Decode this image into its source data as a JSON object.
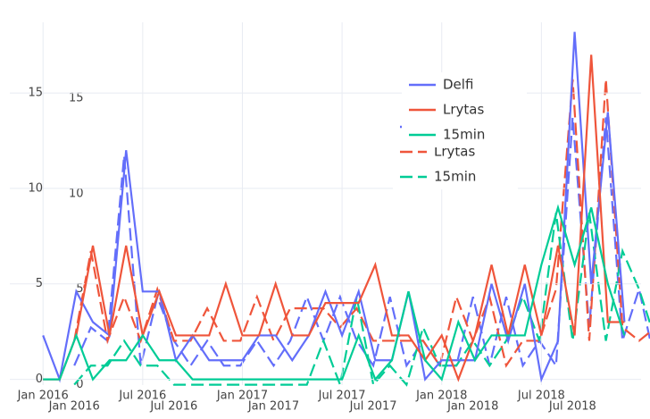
{
  "chart_data": [
    {
      "type": "line",
      "x": [
        "2016-01",
        "2016-02",
        "2016-03",
        "2016-04",
        "2016-05",
        "2016-06",
        "2016-07",
        "2016-08",
        "2016-09",
        "2016-10",
        "2016-11",
        "2016-12",
        "2017-01",
        "2017-02",
        "2017-03",
        "2017-04",
        "2017-05",
        "2017-06",
        "2017-07",
        "2017-08",
        "2017-09",
        "2017-10",
        "2017-11",
        "2017-12",
        "2018-01",
        "2018-02",
        "2018-03",
        "2018-04",
        "2018-05",
        "2018-06",
        "2018-07",
        "2018-08",
        "2018-09",
        "2018-10",
        "2018-11",
        "2018-12"
      ],
      "series": [
        {
          "name": "Delfi",
          "color": "#636efa",
          "values": [
            2.3,
            0,
            4.6,
            3,
            2.3,
            12,
            4.6,
            4.6,
            1,
            2.3,
            1,
            1,
            1,
            2.3,
            2.3,
            1,
            2.3,
            4.6,
            2.3,
            4.6,
            1,
            1,
            4.6,
            0,
            1,
            1,
            1,
            5,
            2,
            5,
            0,
            2,
            18.2,
            5,
            14,
            3
          ]
        },
        {
          "name": "Lrytas",
          "color": "#ef553b",
          "values": [
            0,
            0,
            2.3,
            7,
            2.3,
            7,
            2.3,
            4.6,
            2.3,
            2.3,
            2.3,
            5,
            2.3,
            2.3,
            5,
            2.3,
            2.3,
            4,
            4,
            4,
            6,
            2.3,
            2.3,
            1,
            2.3,
            0,
            2.3,
            6,
            2.3,
            6,
            2.3,
            7,
            2.3,
            17,
            3,
            3
          ]
        },
        {
          "name": "15min",
          "color": "#00cc96",
          "values": [
            0,
            0,
            2.3,
            0,
            1,
            1,
            2.3,
            1,
            1,
            0,
            0,
            0,
            0,
            0,
            0,
            0,
            0,
            0,
            0,
            2.3,
            0,
            1,
            4.6,
            1,
            0,
            3,
            1,
            2.3,
            2.3,
            2.3,
            6,
            9,
            6,
            9,
            5,
            2.3
          ]
        }
      ],
      "xlim": [
        "2015-11",
        "2019-01"
      ],
      "xticks": [
        {
          "value": "2016-01",
          "label": "Jan 2016"
        },
        {
          "value": "2016-07",
          "label": "Jul 2016"
        },
        {
          "value": "2017-01",
          "label": "Jan 2017"
        },
        {
          "value": "2017-07",
          "label": "Jul 2017"
        },
        {
          "value": "2018-01",
          "label": "Jan 2018"
        },
        {
          "value": "2018-07",
          "label": "Jul 2018"
        }
      ],
      "ylim": [
        -0.3,
        18.7
      ],
      "yticks": [
        0,
        5,
        10,
        15
      ],
      "grid": true,
      "dash": false
    },
    {
      "type": "line",
      "x": [
        "2016-01",
        "2016-02",
        "2016-03",
        "2016-04",
        "2016-05",
        "2016-06",
        "2016-07",
        "2016-08",
        "2016-09",
        "2016-10",
        "2016-11",
        "2016-12",
        "2017-01",
        "2017-02",
        "2017-03",
        "2017-04",
        "2017-05",
        "2017-06",
        "2017-07",
        "2017-08",
        "2017-09",
        "2017-10",
        "2017-11",
        "2017-12",
        "2018-01",
        "2018-02",
        "2018-03",
        "2018-04",
        "2018-05",
        "2018-06",
        "2018-07",
        "2018-08",
        "2018-09",
        "2018-10",
        "2018-11",
        "2018-12"
      ],
      "series": [
        {
          "name": "Delfi",
          "color": "#636efa",
          "values": [
            1,
            3,
            2.3,
            12,
            1,
            4.6,
            2.3,
            1,
            2.3,
            1,
            1,
            2.3,
            1,
            2.3,
            4.6,
            2.3,
            4.6,
            2.3,
            1,
            4.6,
            1,
            2.3,
            1,
            1,
            4.6,
            1,
            4.6,
            1,
            2.3,
            1,
            14,
            3,
            14,
            2.3,
            5,
            1
          ]
        },
        {
          "name": "Lrytas",
          "color": "#ef553b",
          "values": [
            2.3,
            7,
            2.3,
            4.6,
            2.3,
            5,
            2.3,
            2.3,
            4,
            2.3,
            2.3,
            4.6,
            2.3,
            4,
            4,
            4,
            3,
            4,
            2.3,
            2.3,
            2.3,
            2.3,
            1,
            4.6,
            2.3,
            4.6,
            1,
            2.3,
            2.3,
            5,
            16,
            2.3,
            16,
            3,
            2.3,
            3
          ]
        },
        {
          "name": "15min",
          "color": "#00cc96",
          "values": [
            0,
            1,
            1,
            2.3,
            1,
            1,
            0,
            0,
            0,
            0,
            0,
            0,
            0,
            0,
            0,
            2.3,
            0,
            4.6,
            0,
            1,
            0,
            3,
            1,
            1,
            2.3,
            1,
            2.3,
            4.6,
            2.3,
            9,
            2.3,
            9,
            2.3,
            7,
            5,
            2.3
          ]
        }
      ],
      "xlim": [
        "2015-11",
        "2019-01"
      ],
      "xticks": [
        {
          "value": "2016-01",
          "label": "Jan 2016"
        },
        {
          "value": "2016-07",
          "label": "Jul 2016"
        },
        {
          "value": "2017-01",
          "label": "Jan 2017"
        },
        {
          "value": "2017-07",
          "label": "Jul 2017"
        },
        {
          "value": "2018-01",
          "label": "Jan 2018"
        },
        {
          "value": "2018-07",
          "label": "Jul 2018"
        }
      ],
      "ylim": [
        -0.3,
        18.7
      ],
      "yticks": [
        0,
        5,
        10,
        15
      ],
      "grid": false,
      "dash": true
    }
  ]
}
